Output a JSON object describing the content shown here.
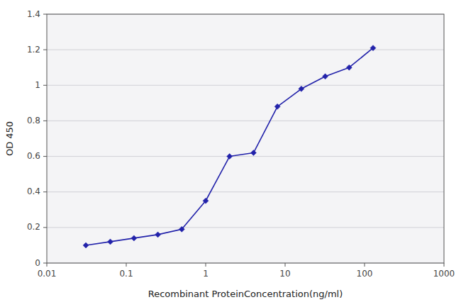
{
  "chart_data": {
    "type": "line",
    "x": [
      0.031,
      0.063,
      0.125,
      0.25,
      0.5,
      1.0,
      2.0,
      4.0,
      8.0,
      16.0,
      32.0,
      64.0,
      128.0
    ],
    "values": [
      0.1,
      0.12,
      0.14,
      0.16,
      0.19,
      0.35,
      0.6,
      0.62,
      0.88,
      0.98,
      1.05,
      1.1,
      1.21
    ],
    "color": "#2222aa",
    "marker": "diamond",
    "line_style": "solid",
    "x_label": "Recombinant ProteinConcentration(ng/ml)",
    "y_label": "OD 450",
    "log": "x",
    "xlim": [
      0.01,
      1000
    ],
    "xticks": [
      0.01,
      0.1,
      1,
      10,
      100,
      1000
    ],
    "ylim": [
      0,
      1.4
    ],
    "yticks": [
      0,
      0.2,
      0.4,
      0.6,
      0.8,
      1,
      1.2,
      1.4
    ],
    "grid": "y"
  }
}
